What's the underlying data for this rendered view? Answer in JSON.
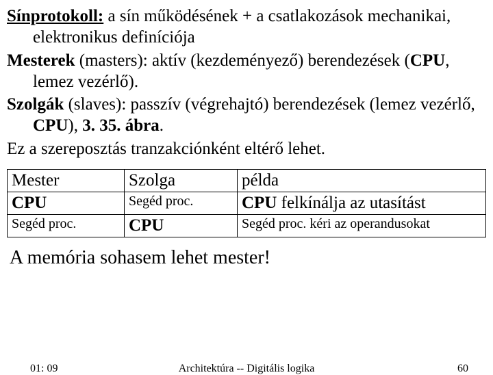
{
  "definitions": {
    "sinprotokoll_label": "Sínprotokoll:",
    "sinprotokoll_text": " a sín működésének + a csatlakozások mechanikai, elektronikus definíciója",
    "mesterek_label": "Mesterek",
    "mesterek_paren": " (masters): aktív (kezdeményező) berendezések (",
    "mesterek_bold2": "CPU",
    "mesterek_tail": ", lemez vezérlő).",
    "szolgak_label": "Szolgák",
    "szolgak_paren": " (slaves): passzív (végrehajtó) berendezések (lemez vezérlő, ",
    "szolgak_bold2": "CPU",
    "szolgak_tail1": "), ",
    "szolgak_bold3": "3. 35. ábra",
    "szolgak_tail2": ".",
    "closing_para": "Ez a szereposztás tranzakciónként eltérő lehet."
  },
  "table": {
    "header": {
      "c1": "Mester",
      "c2": "Szolga",
      "c3": "példa"
    },
    "row1": {
      "c1": "CPU",
      "c2": "Segéd proc.",
      "c3a": "CPU",
      "c3b": " felkínálja az utasítást"
    },
    "row2": {
      "c1": "Segéd proc.",
      "c2": "CPU",
      "c3": "Segéd proc. kéri az operandusokat"
    }
  },
  "closing": "A memória sohasem lehet mester!",
  "footer": {
    "time": "01: 09",
    "center": "Architektúra -- Digitális logika",
    "page": "60"
  }
}
